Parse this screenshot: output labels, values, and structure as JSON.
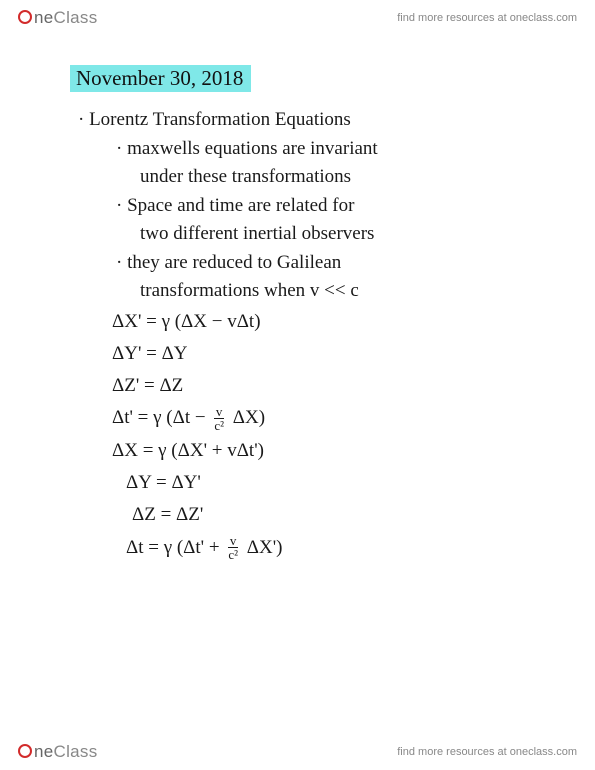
{
  "brand": {
    "one": "ne",
    "class": "Class"
  },
  "resources_text": "find more resources at oneclass.com",
  "date": "November 30, 2018",
  "title": "Lorentz Transformation Equations",
  "bullets": {
    "b1_l1": "maxwells equations are invariant",
    "b1_l2": "under these transformations",
    "b2_l1": "Space and time are related for",
    "b2_l2": "two different inertial observers",
    "b3_l1": "they are reduced to Galilean",
    "b3_l2": "transformations when v << c"
  },
  "equations": {
    "e1_a": "ΔX' = γ (ΔX − vΔt)",
    "e2": "ΔY' = ΔY",
    "e3": "ΔZ' = ΔZ",
    "e4_a": "Δt' = γ (Δt − ",
    "e4_num": "v",
    "e4_den": "c²",
    "e4_b": " ΔX)",
    "e5": "ΔX = γ (ΔX' + vΔt')",
    "e6": "ΔY = ΔY'",
    "e7": "ΔZ = ΔZ'",
    "e8_a": "Δt = γ (Δt' + ",
    "e8_num": "v",
    "e8_den": "c²",
    "e8_b": " ΔX')"
  },
  "colors": {
    "highlight": "#7fe8e8",
    "ink": "#1a1a1a",
    "logo_ring": "#d22b2b",
    "header_text": "#888888",
    "background": "#ffffff"
  }
}
